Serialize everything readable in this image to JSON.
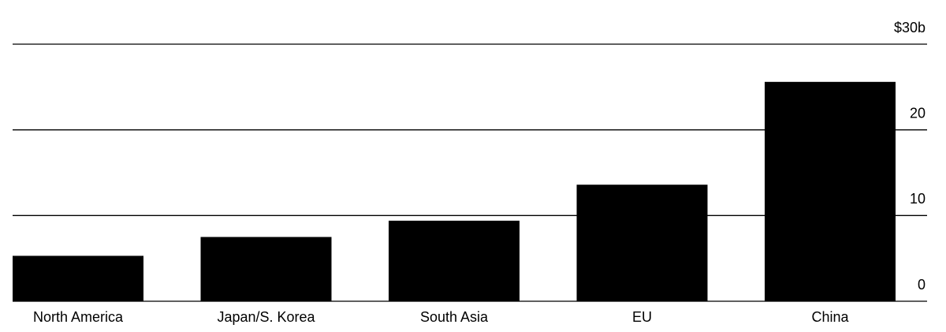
{
  "chart_data": {
    "type": "bar",
    "categories": [
      "North America",
      "Japan/S. Korea",
      "South Asia",
      "EU",
      "China"
    ],
    "values": [
      5.3,
      7.5,
      9.4,
      13.6,
      25.6
    ],
    "color": "#000000",
    "ylim": [
      0,
      30
    ],
    "yticks": [
      0,
      10,
      20,
      {
        "value": 30,
        "label": "$30b"
      }
    ],
    "grid": true
  }
}
